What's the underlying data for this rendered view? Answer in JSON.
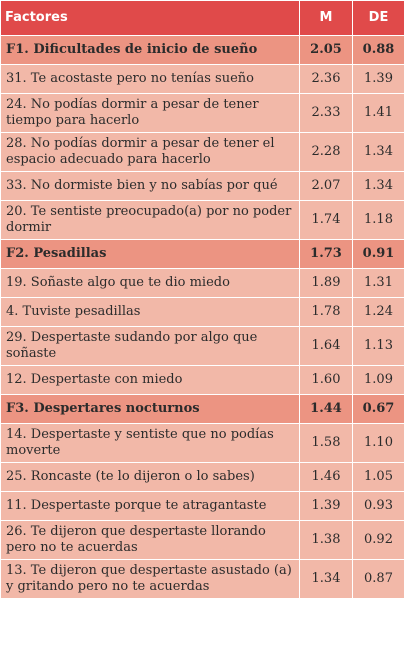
{
  "headers": {
    "factor": "Factores",
    "m": "M",
    "de": "DE"
  },
  "rows": [
    {
      "type": "factor",
      "label": "F1.  Dificultades de inicio de sueño",
      "m": "2.05",
      "de": "0.88"
    },
    {
      "type": "item",
      "label": "31. Te acostaste pero no tenías sueño",
      "m": "2.36",
      "de": "1.39"
    },
    {
      "type": "item",
      "label": "24. No podías dormir a pesar de tener tiempo para hacerlo",
      "m": "2.33",
      "de": "1.41"
    },
    {
      "type": "item",
      "label": "28. No podías dormir a pesar de tener el espacio adecuado para hacerlo",
      "m": "2.28",
      "de": "1.34"
    },
    {
      "type": "item",
      "label": "33. No dormiste bien y no sabías por qué",
      "m": "2.07",
      "de": "1.34"
    },
    {
      "type": "item",
      "label": "20. Te sentiste preocupado(a) por no poder dormir",
      "m": "1.74",
      "de": "1.18"
    },
    {
      "type": "factor",
      "label": "F2. Pesadillas",
      "m": "1.73",
      "de": "0.91"
    },
    {
      "type": "item",
      "label": "19. Soñaste algo que te dio miedo",
      "m": "1.89",
      "de": "1.31"
    },
    {
      "type": "item",
      "label": "4. Tuviste pesadillas",
      "m": "1.78",
      "de": "1.24"
    },
    {
      "type": "item",
      "label": "29. Despertaste sudando por algo que soñaste",
      "m": "1.64",
      "de": "1.13"
    },
    {
      "type": "item",
      "label": "12. Despertaste con miedo",
      "m": "1.60",
      "de": "1.09"
    },
    {
      "type": "factor",
      "label": "F3. Despertares nocturnos",
      "m": "1.44",
      "de": "0.67"
    },
    {
      "type": "item",
      "label": "14. Despertaste y sentiste que no podías moverte",
      "m": "1.58",
      "de": "1.10"
    },
    {
      "type": "item",
      "label": "25. Roncaste (te lo dijeron o lo sabes)",
      "m": "1.46",
      "de": "1.05"
    },
    {
      "type": "item",
      "label": "11. Despertaste porque te atragantaste",
      "m": "1.39",
      "de": "0.93"
    },
    {
      "type": "item",
      "label": "26. Te dijeron que despertaste llorando pero no te acuerdas",
      "m": "1.38",
      "de": "0.92"
    },
    {
      "type": "item",
      "label": "13. Te dijeron que despertaste asustado (a) y gritando pero no te acuerdas",
      "m": "1.34",
      "de": "0.87"
    }
  ]
}
